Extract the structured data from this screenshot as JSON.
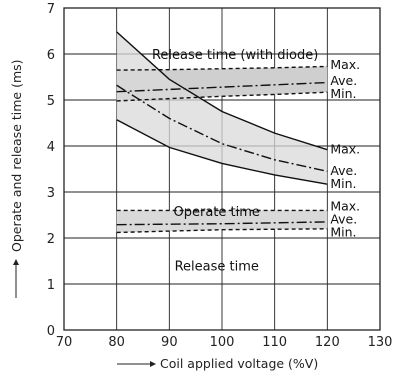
{
  "chart_data": {
    "type": "line",
    "title": "",
    "xlabel": "Coil applied voltage (%V)",
    "ylabel": "Operate and release time (ms)",
    "xlim": [
      70,
      130
    ],
    "ylim": [
      0,
      7
    ],
    "x_ticks": [
      70,
      80,
      90,
      100,
      110,
      120,
      130
    ],
    "y_ticks": [
      0,
      1,
      2,
      3,
      4,
      5,
      6,
      7
    ],
    "grid": true,
    "bands": [
      {
        "name": "Release time (with diode)",
        "x": [
          80,
          90,
          100,
          110,
          120
        ],
        "max": [
          5.65,
          5.66,
          5.68,
          5.7,
          5.73
        ],
        "ave": [
          5.18,
          5.23,
          5.28,
          5.33,
          5.38
        ],
        "min": [
          4.98,
          5.03,
          5.08,
          5.12,
          5.17
        ],
        "labels": {
          "max": "Max.",
          "ave": "Ave.",
          "min": "Min."
        }
      },
      {
        "name": "Operate time",
        "x": [
          80,
          90,
          100,
          110,
          120
        ],
        "max": [
          6.48,
          5.45,
          4.75,
          4.28,
          3.92
        ],
        "ave": [
          5.32,
          4.6,
          4.05,
          3.7,
          3.45
        ],
        "min": [
          4.57,
          3.97,
          3.62,
          3.37,
          3.17
        ],
        "labels": {
          "max": "Max.",
          "ave": "Ave.",
          "min": "Min."
        }
      },
      {
        "name": "Release time",
        "x": [
          80,
          90,
          100,
          110,
          120
        ],
        "max": [
          2.6,
          2.6,
          2.6,
          2.6,
          2.6
        ],
        "ave": [
          2.29,
          2.3,
          2.31,
          2.33,
          2.35
        ],
        "min": [
          2.12,
          2.15,
          2.18,
          2.19,
          2.2
        ],
        "labels": {
          "max": "Max.",
          "ave": "Ave.",
          "min": "Min."
        }
      }
    ]
  }
}
